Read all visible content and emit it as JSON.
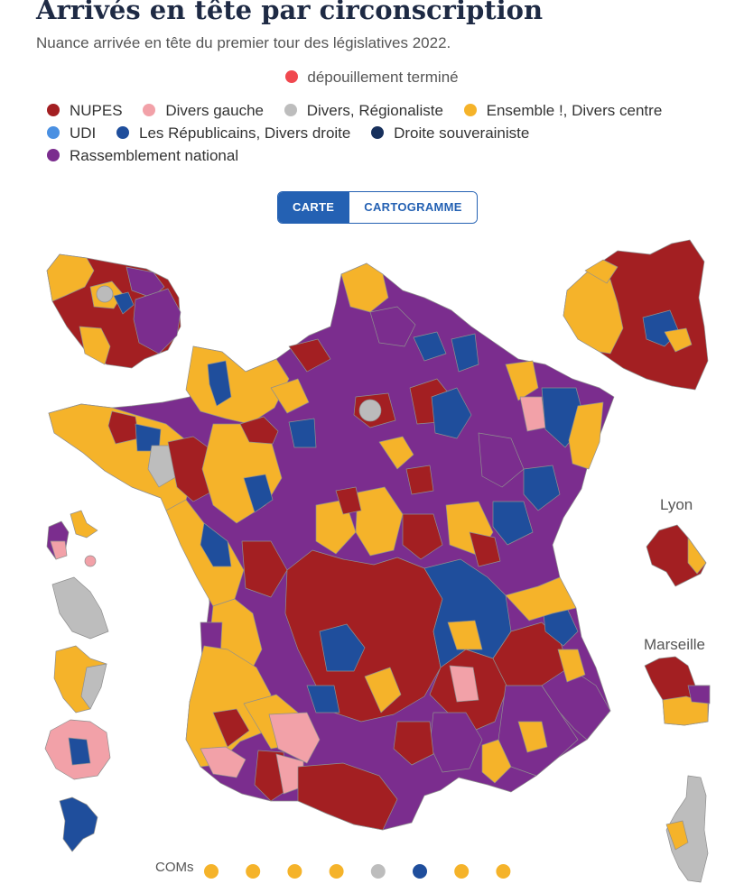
{
  "header": {
    "title": "Arrivés en tête par circonscription",
    "subtitle": "Nuance arrivée en tête du premier tour des législatives 2022."
  },
  "status": {
    "label": "dépouillement terminé",
    "color": "#f0484f"
  },
  "legend": [
    {
      "label": "NUPES",
      "color": "#a31f22"
    },
    {
      "label": "Divers gauche",
      "color": "#f2a1a8"
    },
    {
      "label": "Divers, Régionaliste",
      "color": "#bdbdbd"
    },
    {
      "label": "Ensemble !, Divers centre",
      "color": "#f5b32a"
    },
    {
      "label": "UDI",
      "color": "#4a90e2"
    },
    {
      "label": "Les Républicains, Divers droite",
      "color": "#1f4e9c"
    },
    {
      "label": "Droite souverainiste",
      "color": "#17305c"
    },
    {
      "label": "Rassemblement national",
      "color": "#7b2d8e"
    }
  ],
  "toggle": {
    "active": "CARTE",
    "inactive": "CARTOGRAMME"
  },
  "insets": {
    "lyon": "Lyon",
    "marseille": "Marseille"
  },
  "coms": {
    "label": "COMs",
    "dots": [
      "#f5b32a",
      "#f5b32a",
      "#f5b32a",
      "#f5b32a",
      "#bdbdbd",
      "#1f4e9c",
      "#f5b32a",
      "#f5b32a"
    ]
  }
}
